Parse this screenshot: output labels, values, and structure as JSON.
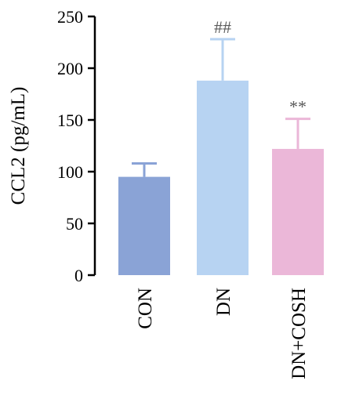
{
  "chart_data": {
    "type": "bar",
    "categories": [
      "CON",
      "DN",
      "DN+COSH"
    ],
    "values": [
      95,
      188,
      122
    ],
    "error_upper": [
      108,
      228,
      151
    ],
    "annotations": [
      "",
      "##",
      "**"
    ],
    "ylabel": "CCL2 (pg/mL)",
    "xlabel": "",
    "ylim": [
      0,
      250
    ],
    "yticks": [
      0,
      50,
      100,
      150,
      200,
      250
    ],
    "grid": false,
    "colors": [
      "#8aa3d6",
      "#b7d3f2",
      "#ebb7d8"
    ],
    "error_colors": [
      "#8aa3d6",
      "#b7d3f2",
      "#ebb7d8"
    ],
    "annotation_colors": [
      "#000000",
      "#5a5a5a",
      "#5a5a5a"
    ]
  }
}
